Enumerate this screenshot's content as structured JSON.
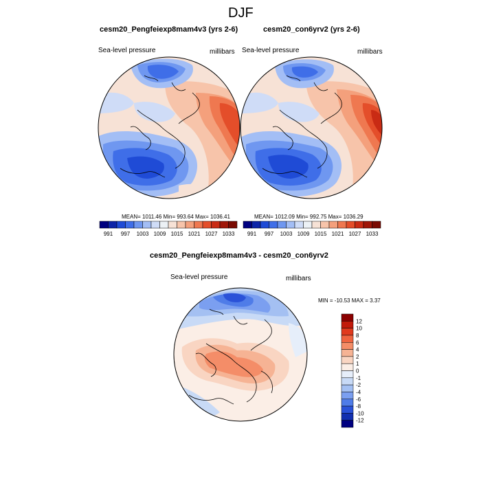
{
  "figure": {
    "title": "DJF"
  },
  "panels": {
    "left": {
      "title": "cesm20_Pengfeiexp8mam4v3 (yrs 2-6)",
      "variable": "Sea-level pressure",
      "units": "millibars",
      "stats": "MEAN= 1011.46  Min= 993.64  Max= 1036.41"
    },
    "right": {
      "title": "cesm20_con6yrv2 (yrs 2-6)",
      "variable": "Sea-level pressure",
      "units": "millibars",
      "stats": "MEAN= 1012.09  Min= 992.75  Max= 1036.29"
    },
    "diff": {
      "title": "cesm20_Pengfeiexp8mam4v3 - cesm20_con6yrv2",
      "variable": "Sea-level pressure",
      "units": "millibars",
      "stats": "MIN = -10.53 MAX =   3.37"
    }
  },
  "chart_data": [
    {
      "type": "heatmap",
      "projection": "north-polar-stereographic",
      "title": "cesm20_Pengfeiexp8mam4v3 (yrs 2-6)",
      "variable": "Sea-level pressure",
      "units": "millibars",
      "mean": 1011.46,
      "min": 993.64,
      "max": 1036.41,
      "colorbar_labels": [
        "991",
        "997",
        "1003",
        "1009",
        "1015",
        "1021",
        "1027",
        "1033"
      ],
      "colorbar_colors": [
        "#000080",
        "#0d24a8",
        "#1f4bd6",
        "#3f6ee8",
        "#6f97f0",
        "#a3bef5",
        "#cfdcf7",
        "#ecf1f5",
        "#f7e2d6",
        "#f7c4aa",
        "#f4a07c",
        "#ef7850",
        "#e44e2a",
        "#c92b14",
        "#a01608",
        "#7a0a02"
      ]
    },
    {
      "type": "heatmap",
      "projection": "north-polar-stereographic",
      "title": "cesm20_con6yrv2 (yrs 2-6)",
      "variable": "Sea-level pressure",
      "units": "millibars",
      "mean": 1012.09,
      "min": 992.75,
      "max": 1036.29,
      "colorbar_labels": [
        "991",
        "997",
        "1003",
        "1009",
        "1015",
        "1021",
        "1027",
        "1033"
      ],
      "colorbar_colors": [
        "#000080",
        "#0d24a8",
        "#1f4bd6",
        "#3f6ee8",
        "#6f97f0",
        "#a3bef5",
        "#cfdcf7",
        "#ecf1f5",
        "#f7e2d6",
        "#f7c4aa",
        "#f4a07c",
        "#ef7850",
        "#e44e2a",
        "#c92b14",
        "#a01608",
        "#7a0a02"
      ]
    },
    {
      "type": "heatmap",
      "projection": "north-polar-stereographic",
      "title": "cesm20_Pengfeiexp8mam4v3 - cesm20_con6yrv2",
      "variable": "Sea-level pressure",
      "units": "millibars",
      "min": -10.53,
      "max": 3.37,
      "colorbar_labels": [
        "12",
        "10",
        "8",
        "6",
        "4",
        "2",
        "1",
        "0",
        "-1",
        "-2",
        "-4",
        "-6",
        "-8",
        "-10",
        "-12"
      ],
      "colorbar_colors": [
        "#8b0000",
        "#c21a0a",
        "#e03a1e",
        "#ef6440",
        "#f48d68",
        "#f6b394",
        "#f9d5c2",
        "#fbeee6",
        "#e6eefa",
        "#c8daf6",
        "#a4c0f2",
        "#7b9ff0",
        "#4f7ce8",
        "#2a52d8",
        "#1230b0",
        "#000080"
      ]
    }
  ]
}
